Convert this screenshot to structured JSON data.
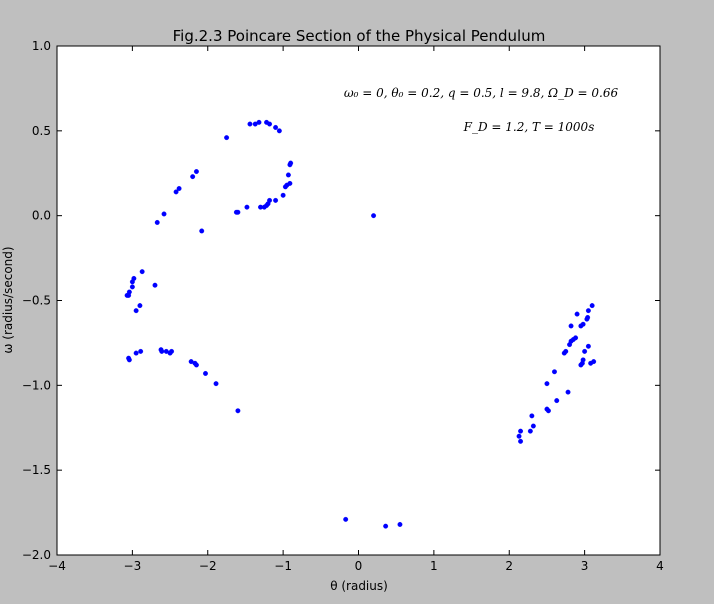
{
  "chart_data": {
    "type": "scatter",
    "title": "Fig.2.3 Poincare Section of the Physical Pendulum",
    "xlabel": "θ (radius)",
    "ylabel": "ω (radius/second)",
    "xlim": [
      -4,
      4
    ],
    "ylim": [
      -2.0,
      1.0
    ],
    "x_ticks": [
      "−4",
      "−3",
      "−2",
      "−1",
      "0",
      "1",
      "2",
      "3",
      "4"
    ],
    "y_ticks": [
      "1.0",
      "0.5",
      "0.0",
      "−0.5",
      "−1.0",
      "−1.5",
      "−2.0"
    ],
    "annotations": [
      "ω₀ = 0, θ₀ = 0.2, q = 0.5, l = 9.8, Ω_D = 0.66",
      "F_D = 1.2, T = 1000s"
    ],
    "grid": false,
    "legend": "none",
    "marker_color": "#0000ff",
    "series": [
      {
        "points": [
          [
            -1.44,
            0.54
          ],
          [
            -1.37,
            0.54
          ],
          [
            -1.32,
            0.55
          ],
          [
            -1.22,
            0.55
          ],
          [
            -1.18,
            0.54
          ],
          [
            -1.1,
            0.52
          ],
          [
            -1.05,
            0.5
          ],
          [
            -1.75,
            0.46
          ],
          [
            -0.9,
            0.31
          ],
          [
            -0.91,
            0.3
          ],
          [
            -2.15,
            0.26
          ],
          [
            -2.2,
            0.23
          ],
          [
            -0.93,
            0.24
          ],
          [
            -0.91,
            0.19
          ],
          [
            -0.95,
            0.18
          ],
          [
            -0.97,
            0.17
          ],
          [
            -2.38,
            0.16
          ],
          [
            -2.42,
            0.14
          ],
          [
            -1.0,
            0.12
          ],
          [
            -1.1,
            0.09
          ],
          [
            -1.18,
            0.09
          ],
          [
            -1.2,
            0.07
          ],
          [
            -1.22,
            0.06
          ],
          [
            -1.25,
            0.05
          ],
          [
            -1.3,
            0.05
          ],
          [
            -1.48,
            0.05
          ],
          [
            -1.62,
            0.02
          ],
          [
            -1.6,
            0.02
          ],
          [
            -2.58,
            0.01
          ],
          [
            0.2,
            0.0
          ],
          [
            -2.67,
            -0.04
          ],
          [
            -2.08,
            -0.09
          ],
          [
            -2.87,
            -0.33
          ],
          [
            -2.98,
            -0.37
          ],
          [
            -3.0,
            -0.39
          ],
          [
            -2.7,
            -0.41
          ],
          [
            -3.0,
            -0.42
          ],
          [
            -3.04,
            -0.45
          ],
          [
            -3.05,
            -0.47
          ],
          [
            -3.07,
            -0.47
          ],
          [
            -2.9,
            -0.53
          ],
          [
            -2.95,
            -0.56
          ],
          [
            -2.89,
            -0.8
          ],
          [
            -2.95,
            -0.81
          ],
          [
            -2.62,
            -0.79
          ],
          [
            -2.61,
            -0.8
          ],
          [
            -2.55,
            -0.8
          ],
          [
            -2.48,
            -0.8
          ],
          [
            -2.5,
            -0.81
          ],
          [
            -3.05,
            -0.84
          ],
          [
            -3.04,
            -0.85
          ],
          [
            -2.22,
            -0.86
          ],
          [
            -2.17,
            -0.87
          ],
          [
            -2.15,
            -0.88
          ],
          [
            -2.03,
            -0.93
          ],
          [
            -1.89,
            -0.99
          ],
          [
            -1.6,
            -1.15
          ],
          [
            3.1,
            -0.53
          ],
          [
            3.05,
            -0.56
          ],
          [
            3.04,
            -0.6
          ],
          [
            3.03,
            -0.61
          ],
          [
            2.9,
            -0.58
          ],
          [
            2.82,
            -0.65
          ],
          [
            2.98,
            -0.64
          ],
          [
            2.95,
            -0.65
          ],
          [
            2.88,
            -0.72
          ],
          [
            2.85,
            -0.73
          ],
          [
            2.82,
            -0.74
          ],
          [
            2.8,
            -0.76
          ],
          [
            3.05,
            -0.77
          ],
          [
            3.0,
            -0.8
          ],
          [
            2.75,
            -0.8
          ],
          [
            2.73,
            -0.81
          ],
          [
            2.98,
            -0.85
          ],
          [
            3.12,
            -0.86
          ],
          [
            3.08,
            -0.87
          ],
          [
            2.97,
            -0.87
          ],
          [
            2.95,
            -0.88
          ],
          [
            2.6,
            -0.92
          ],
          [
            2.5,
            -0.99
          ],
          [
            2.78,
            -1.04
          ],
          [
            2.63,
            -1.09
          ],
          [
            2.5,
            -1.14
          ],
          [
            2.52,
            -1.15
          ],
          [
            2.3,
            -1.18
          ],
          [
            2.32,
            -1.24
          ],
          [
            2.28,
            -1.27
          ],
          [
            2.15,
            -1.27
          ],
          [
            2.13,
            -1.3
          ],
          [
            2.15,
            -1.33
          ],
          [
            -0.17,
            -1.79
          ],
          [
            0.36,
            -1.83
          ],
          [
            0.55,
            -1.82
          ]
        ]
      }
    ]
  }
}
